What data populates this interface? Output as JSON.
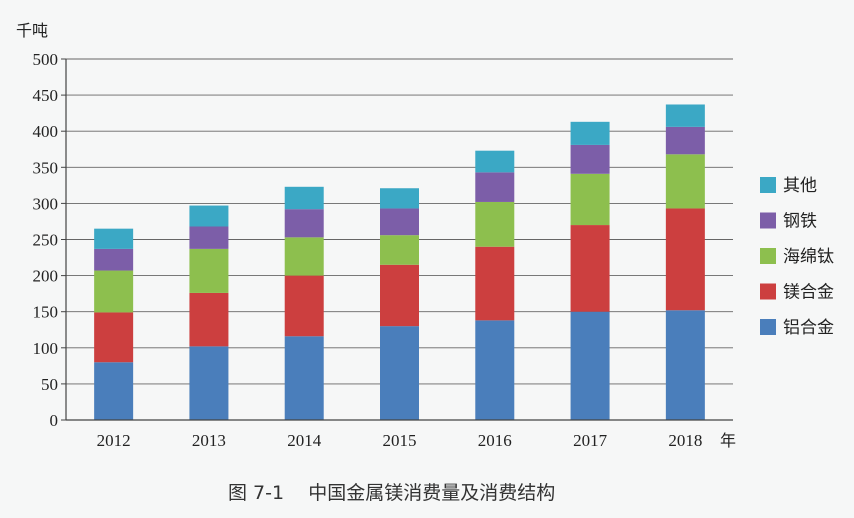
{
  "chart_data": {
    "type": "bar",
    "stacked": true,
    "ylabel": "千吨",
    "xlabel": "年",
    "ylim": [
      0,
      500
    ],
    "yticks": [
      0,
      50,
      100,
      150,
      200,
      250,
      300,
      350,
      400,
      450,
      500
    ],
    "categories": [
      "2012",
      "2013",
      "2014",
      "2015",
      "2016",
      "2017",
      "2018"
    ],
    "series": [
      {
        "name": "铝合金",
        "color": "#4a7ebb",
        "values": [
          80,
          102,
          116,
          130,
          138,
          150,
          152
        ]
      },
      {
        "name": "镁合金",
        "color": "#cc3f3f",
        "values": [
          69,
          74,
          84,
          85,
          102,
          120,
          141
        ]
      },
      {
        "name": "海绵钛",
        "color": "#8dbf4e",
        "values": [
          58,
          61,
          53,
          41,
          62,
          71,
          75
        ]
      },
      {
        "name": "钢铁",
        "color": "#7c5ea8",
        "values": [
          30,
          31,
          39,
          37,
          41,
          40,
          38
        ]
      },
      {
        "name": "其他",
        "color": "#3ba8c5",
        "values": [
          28,
          29,
          31,
          28,
          30,
          32,
          31
        ]
      }
    ],
    "legend_position": "right",
    "grid": true
  },
  "caption": "图 7-1    中国金属镁消费量及消费结构"
}
